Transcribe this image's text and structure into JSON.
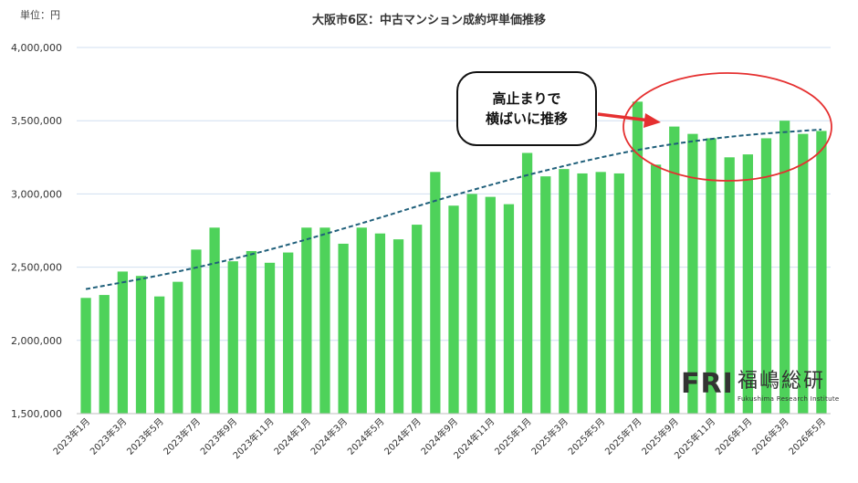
{
  "unit_label": "単位：円",
  "chart_data": {
    "type": "bar",
    "title": "大阪市6区：中古マンション成約坪単価推移",
    "ylim": [
      1500000,
      4000000
    ],
    "yticks": [
      1500000,
      2000000,
      2500000,
      3000000,
      3500000,
      4000000
    ],
    "ytick_labels": [
      "1,500,000",
      "2,000,000",
      "2,500,000",
      "3,000,000",
      "3,500,000",
      "4,000,000"
    ],
    "tick_labels": [
      "2023年1月",
      "2023年3月",
      "2023年5月",
      "2023年7月",
      "2023年9月",
      "2023年11月",
      "2024年1月",
      "2024年3月",
      "2024年5月",
      "2024年7月",
      "2024年9月",
      "2024年11月",
      "2025年1月",
      "2025年3月",
      "2025年5月",
      "2025年7月",
      "2025年9月",
      "2025年11月",
      "2026年1月",
      "2026年3月",
      "2026年5月"
    ],
    "values": [
      2290000,
      2310000,
      2470000,
      2440000,
      2300000,
      2400000,
      2620000,
      2770000,
      2540000,
      2610000,
      2530000,
      2600000,
      2770000,
      2770000,
      2660000,
      2770000,
      2730000,
      2690000,
      2790000,
      3150000,
      2920000,
      3000000,
      2980000,
      2930000,
      3280000,
      3120000,
      3170000,
      3140000,
      3150000,
      3140000,
      3630000,
      3200000,
      3460000,
      3410000,
      3380000,
      3250000,
      3270000,
      3380000,
      3500000,
      3410000,
      3430000
    ],
    "trend": [
      2350000,
      2470000,
      2620000,
      2800000,
      2990000,
      3160000,
      3300000,
      3390000,
      3440000
    ],
    "trend_style": "dashed",
    "bar_color": "#4ed25a",
    "trend_color": "#1f5f7a",
    "grid": true,
    "annotation": {
      "lines": [
        "高止まりで",
        "横ばいに推移"
      ],
      "highlight_color": "#e53030"
    }
  },
  "logo": {
    "mark": "FRI",
    "name": "福嶋総研",
    "subtitle": "Fukushima Research Institute"
  }
}
